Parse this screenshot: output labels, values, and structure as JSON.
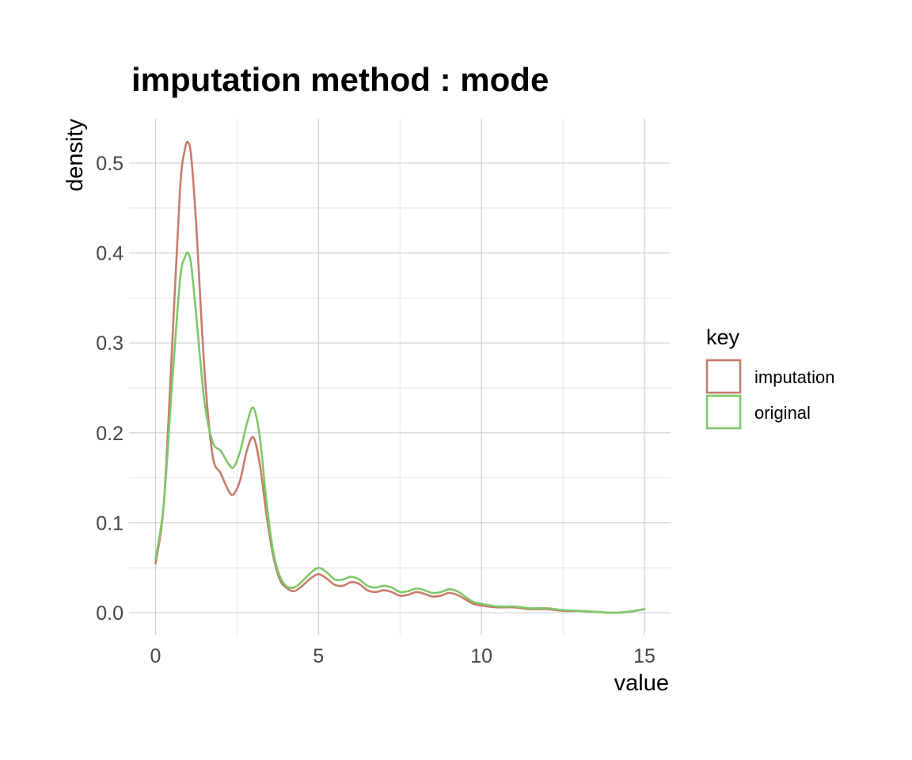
{
  "chart_data": {
    "type": "line",
    "title": "imputation method : mode",
    "xlabel": "value",
    "ylabel": "density",
    "xlim": [
      0,
      15
    ],
    "ylim": [
      0,
      0.52
    ],
    "x_ticks": [
      0,
      5,
      10,
      15
    ],
    "x_tick_labels": [
      "0",
      "5",
      "10",
      "15"
    ],
    "y_ticks": [
      0,
      0.1,
      0.2,
      0.3,
      0.4,
      0.5
    ],
    "y_tick_labels": [
      "0.0",
      "0.1",
      "0.2",
      "0.3",
      "0.4",
      "0.5"
    ],
    "grid": true,
    "legend": {
      "title": "key",
      "placement": "right"
    },
    "series": [
      {
        "name": "imputation",
        "color": "#c87b6b",
        "x": [
          0,
          0.25,
          0.5,
          0.75,
          0.9,
          1.0,
          1.1,
          1.25,
          1.5,
          1.75,
          2.0,
          2.25,
          2.4,
          2.6,
          2.8,
          3.0,
          3.2,
          3.4,
          3.6,
          3.8,
          4.0,
          4.25,
          4.5,
          4.75,
          5.0,
          5.25,
          5.5,
          5.75,
          6.0,
          6.25,
          6.5,
          6.75,
          7.0,
          7.25,
          7.5,
          7.75,
          8.0,
          8.25,
          8.5,
          8.75,
          9.0,
          9.25,
          9.5,
          9.75,
          10.0,
          10.5,
          11.0,
          11.5,
          12.0,
          12.5,
          13.0,
          13.5,
          14.0,
          14.5,
          15.0
        ],
        "y": [
          0.055,
          0.12,
          0.29,
          0.47,
          0.515,
          0.523,
          0.505,
          0.43,
          0.27,
          0.175,
          0.155,
          0.135,
          0.132,
          0.148,
          0.18,
          0.195,
          0.165,
          0.11,
          0.065,
          0.038,
          0.028,
          0.024,
          0.03,
          0.038,
          0.043,
          0.038,
          0.031,
          0.03,
          0.034,
          0.032,
          0.025,
          0.023,
          0.025,
          0.023,
          0.019,
          0.02,
          0.023,
          0.021,
          0.018,
          0.019,
          0.022,
          0.02,
          0.015,
          0.01,
          0.008,
          0.006,
          0.006,
          0.004,
          0.004,
          0.002,
          0.002,
          0.001,
          0.0,
          0.001,
          0.004
        ]
      },
      {
        "name": "original",
        "color": "#7ec86a",
        "x": [
          0,
          0.25,
          0.5,
          0.75,
          0.9,
          1.0,
          1.1,
          1.25,
          1.5,
          1.75,
          2.0,
          2.25,
          2.4,
          2.6,
          2.8,
          3.0,
          3.2,
          3.4,
          3.6,
          3.8,
          4.0,
          4.25,
          4.5,
          4.75,
          5.0,
          5.25,
          5.5,
          5.75,
          6.0,
          6.25,
          6.5,
          6.75,
          7.0,
          7.25,
          7.5,
          7.75,
          8.0,
          8.25,
          8.5,
          8.75,
          9.0,
          9.25,
          9.5,
          9.75,
          10.0,
          10.5,
          11.0,
          11.5,
          12.0,
          12.5,
          13.0,
          13.5,
          14.0,
          14.5,
          15.0
        ],
        "y": [
          0.06,
          0.12,
          0.25,
          0.37,
          0.395,
          0.4,
          0.385,
          0.33,
          0.235,
          0.19,
          0.18,
          0.165,
          0.162,
          0.18,
          0.21,
          0.228,
          0.195,
          0.125,
          0.07,
          0.042,
          0.03,
          0.028,
          0.035,
          0.044,
          0.05,
          0.045,
          0.037,
          0.037,
          0.04,
          0.037,
          0.03,
          0.028,
          0.03,
          0.028,
          0.023,
          0.024,
          0.027,
          0.025,
          0.022,
          0.023,
          0.026,
          0.024,
          0.018,
          0.012,
          0.01,
          0.007,
          0.007,
          0.005,
          0.005,
          0.003,
          0.002,
          0.001,
          0.0,
          0.001,
          0.004
        ]
      }
    ]
  }
}
